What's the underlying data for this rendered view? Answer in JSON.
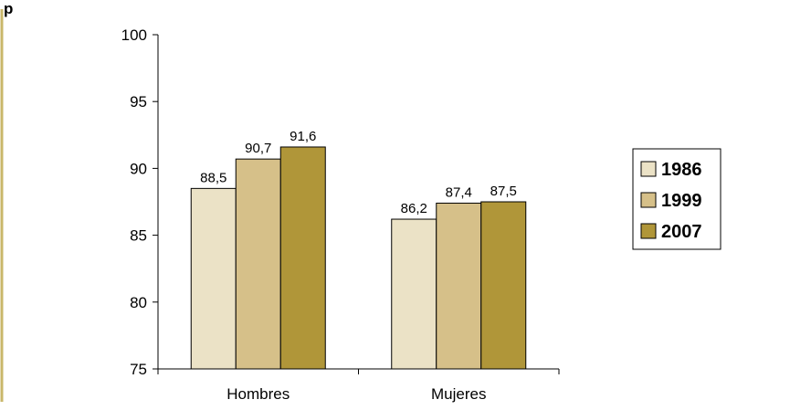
{
  "chart_data": {
    "type": "bar",
    "title": "p",
    "categories": [
      "Hombres",
      "Mujeres"
    ],
    "series": [
      {
        "name": "1986",
        "values": [
          88.5,
          86.2
        ],
        "labels": [
          "88,5",
          "86,2"
        ],
        "color": "#ebe2c6"
      },
      {
        "name": "1999",
        "values": [
          90.7,
          87.4
        ],
        "labels": [
          "90,7",
          "87,4"
        ],
        "color": "#d6c089"
      },
      {
        "name": "2007",
        "values": [
          91.6,
          87.5
        ],
        "labels": [
          "91,6",
          "87,5"
        ],
        "color": "#b09639"
      }
    ],
    "ylim": [
      75,
      100
    ],
    "yticks": [
      75,
      80,
      85,
      90,
      95,
      100
    ],
    "ytick_labels": [
      "75",
      "80",
      "85",
      "90",
      "95",
      "100"
    ],
    "xlabel": "",
    "ylabel": "",
    "grid": false,
    "legend_position": "right"
  },
  "colors": {
    "left_rule": "#c9b76a",
    "bar_border": "#000000"
  }
}
